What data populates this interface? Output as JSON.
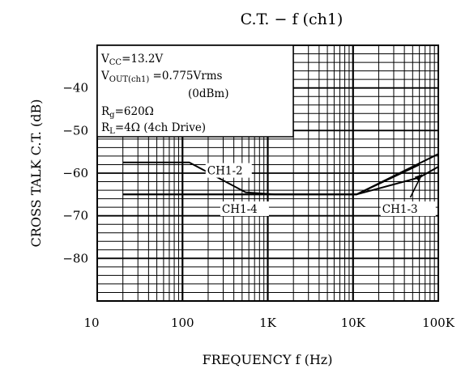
{
  "chart_data": {
    "type": "line",
    "title": "C.T. − f (ch1)",
    "xlabel": "FREQUENCY f (Hz)",
    "ylabel": "CROSS TALK C.T. (dB)",
    "xscale": "log",
    "xlim": [
      10,
      100000
    ],
    "ylim": [
      -90,
      -30
    ],
    "x_ticks": [
      10,
      100,
      1000,
      10000,
      100000
    ],
    "x_tick_labels": [
      "10",
      "100",
      "1K",
      "10K",
      "100K"
    ],
    "y_ticks": [
      -40,
      -50,
      -60,
      -70,
      -80
    ],
    "y_tick_labels": [
      "−40",
      "−50",
      "−60",
      "−70",
      "−80"
    ],
    "grid": true,
    "conditions": [
      "V_CC=13.2V",
      "V_OUT(ch1) =0.775Vrms",
      "(0dBm)",
      "R_g=620Ω",
      "R_L=4Ω (4ch Drive)"
    ],
    "series": [
      {
        "name": "CH1-2",
        "x": [
          20,
          120,
          550,
          1200,
          11000,
          100000
        ],
        "y": [
          -57.5,
          -57.5,
          -64.5,
          -65,
          -65,
          -55.5
        ]
      },
      {
        "name": "CH1-3",
        "x": [
          20,
          1000,
          11000,
          60000,
          100000
        ],
        "y": [
          -65,
          -65,
          -65,
          -61,
          -58.5
        ]
      },
      {
        "name": "CH1-4",
        "x": [
          20,
          1000,
          11000,
          60000
        ],
        "y": [
          -65,
          -65,
          -65,
          -58
        ]
      }
    ]
  }
}
